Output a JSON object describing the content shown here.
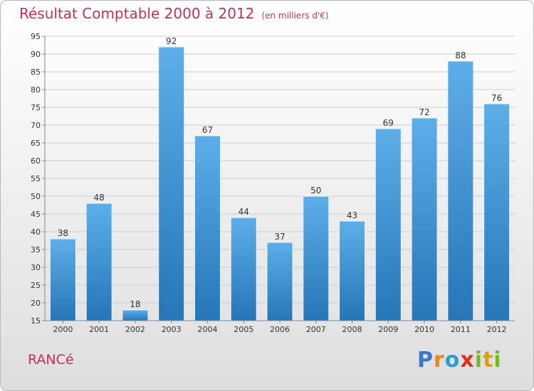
{
  "header": {
    "title": "Résultat Comptable 2000 à 2012",
    "subtitle": "(en milliers d'€)"
  },
  "footer": {
    "commune": "RANCé",
    "logo": "Proxiti"
  },
  "colors": {
    "title": "#c0305a",
    "bar_top": "#5daee8",
    "bar_bottom": "#2676b8",
    "grid": "#cccccc"
  },
  "chart_data": {
    "type": "bar",
    "title": "Résultat Comptable 2000 à 2012",
    "subtitle": "(en milliers d'€)",
    "xlabel": "",
    "ylabel": "",
    "categories": [
      "2000",
      "2001",
      "2002",
      "2003",
      "2004",
      "2005",
      "2006",
      "2007",
      "2008",
      "2009",
      "2010",
      "2011",
      "2012"
    ],
    "values": [
      38,
      48,
      18,
      92,
      67,
      44,
      37,
      50,
      43,
      69,
      72,
      88,
      76
    ],
    "ylim": [
      15,
      95
    ],
    "yticks": [
      15,
      20,
      25,
      30,
      35,
      40,
      45,
      50,
      55,
      60,
      65,
      70,
      75,
      80,
      85,
      90,
      95
    ],
    "grid": true
  }
}
